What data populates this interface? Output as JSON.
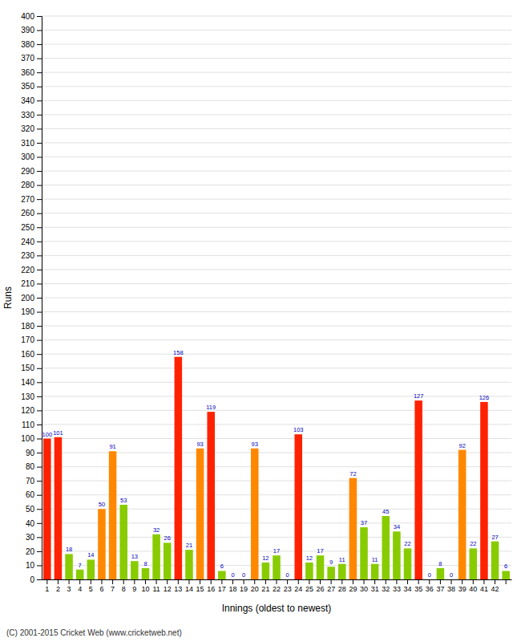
{
  "chart_data": {
    "type": "bar",
    "xlabel": "Innings (oldest to newest)",
    "ylabel": "Runs",
    "annotations": [
      "(C) 2001-2015 Cricket Web (www.cricketweb.net)"
    ],
    "categories": [
      "1",
      "2",
      "3",
      "4",
      "5",
      "6",
      "7",
      "8",
      "9",
      "10",
      "11",
      "12",
      "13",
      "14",
      "15",
      "16",
      "17",
      "18",
      "19",
      "20",
      "21",
      "22",
      "23",
      "24",
      "25",
      "26",
      "27",
      "28",
      "29",
      "30",
      "31",
      "32",
      "33",
      "34",
      "35",
      "36",
      "37",
      "38",
      "39",
      "40",
      "41",
      "42",
      null
    ],
    "values": [
      100,
      101,
      18,
      7,
      14,
      50,
      91,
      53,
      13,
      8,
      32,
      26,
      158,
      21,
      93,
      119,
      6,
      0,
      0,
      93,
      12,
      17,
      0,
      103,
      12,
      17,
      9,
      11,
      72,
      37,
      11,
      45,
      34,
      22,
      127,
      0,
      8,
      0,
      92,
      22,
      126,
      27,
      6
    ],
    "colors": [
      "#ff2200",
      "#ff2200",
      "#88cc00",
      "#88cc00",
      "#88cc00",
      "#ff8800",
      "#ff8800",
      "#88cc00",
      "#88cc00",
      "#88cc00",
      "#88cc00",
      "#88cc00",
      "#ff2200",
      "#88cc00",
      "#ff8800",
      "#ff2200",
      "#88cc00",
      "#88cc00",
      "#88cc00",
      "#ff8800",
      "#88cc00",
      "#88cc00",
      "#88cc00",
      "#ff2200",
      "#88cc00",
      "#88cc00",
      "#88cc00",
      "#88cc00",
      "#ff8800",
      "#88cc00",
      "#88cc00",
      "#88cc00",
      "#88cc00",
      "#88cc00",
      "#ff2200",
      "#88cc00",
      "#88cc00",
      "#88cc00",
      "#ff8800",
      "#88cc00",
      "#ff2200",
      "#88cc00",
      "#88cc00"
    ],
    "ylim": [
      0,
      400
    ],
    "yticks": [
      0,
      10,
      20,
      30,
      40,
      50,
      60,
      70,
      80,
      90,
      100,
      110,
      120,
      130,
      140,
      150,
      160,
      170,
      180,
      190,
      200,
      210,
      220,
      230,
      240,
      250,
      260,
      270,
      280,
      290,
      300,
      310,
      320,
      330,
      340,
      350,
      360,
      370,
      380,
      390,
      400
    ],
    "grid": true,
    "data_labels": true
  }
}
